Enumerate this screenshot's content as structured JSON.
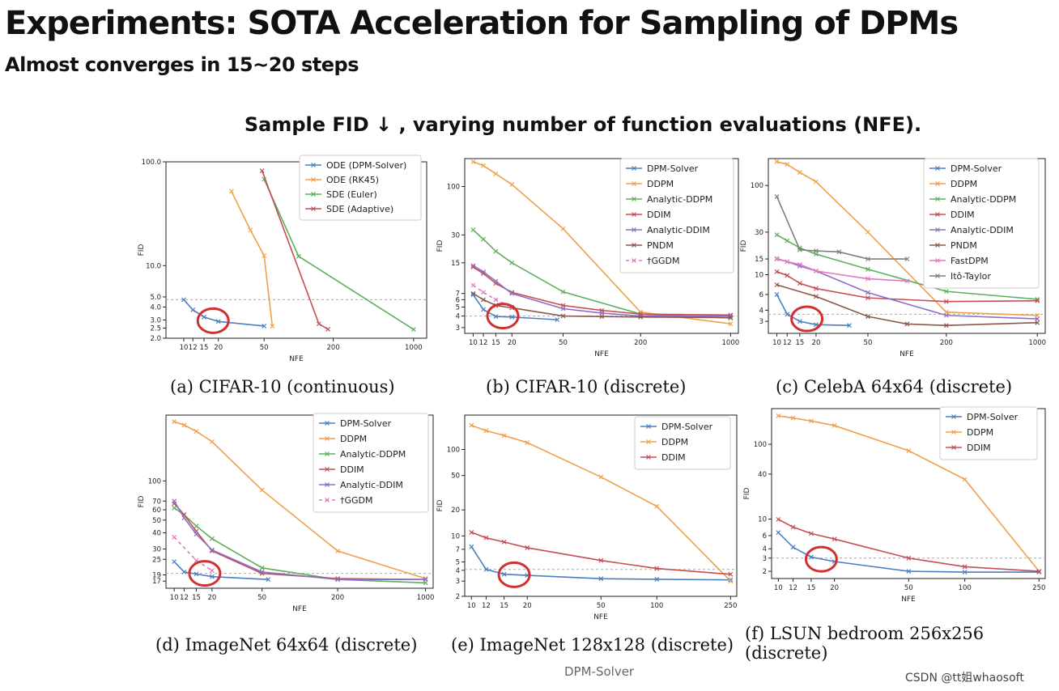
{
  "slide": {
    "title": "Experiments: SOTA Acceleration for Sampling of DPMs",
    "subtitle": "Almost converges in 15~20 steps",
    "section_title": "Sample FID ↓ , varying number of function evaluations (NFE).",
    "footer": "DPM-Solver",
    "watermark": "CSDN @tt姐whaosoft"
  },
  "colors": {
    "DPM-Solver": "#4a7fc2",
    "ODE (DPM-Solver)": "#4a7fc2",
    "DDPM": "#f0a04b",
    "ODE (RK45)": "#f0a04b",
    "Analytic-DDPM": "#5cb05c",
    "SDE (Euler)": "#5cb05c",
    "DDIM": "#c44e52",
    "SDE (Adaptive)": "#c44e52",
    "Analytic-DDIM": "#8c6fc6",
    "PNDM": "#8c564b",
    "†GGDM": "#e377c2",
    "FastDPM": "#e377c2",
    "Itô-Taylor": "#7f7f7f",
    "circle": "#d0302f"
  },
  "chart_data": [
    {
      "type": "line",
      "caption": "(a) CIFAR-10 (continuous)",
      "xlabel": "NFE",
      "ylabel": "FID",
      "xlim": [
        7,
        1300
      ],
      "ylim": [
        2.0,
        100
      ],
      "xticks": [
        10,
        12,
        15,
        20,
        50,
        200,
        1000
      ],
      "xtick_labels": [
        "10",
        "12",
        "15",
        "20",
        "50",
        "200",
        "1000"
      ],
      "yticks": [
        2.0,
        2.5,
        3.0,
        4.0,
        5.0,
        10.0,
        100.0
      ],
      "ytick_labels": [
        "2.0",
        "2.5",
        "3.0",
        "4.0",
        "5.0",
        "10.0",
        "100.0"
      ],
      "hline": 4.7,
      "circle": {
        "x": 18,
        "y": 2.95
      },
      "series": [
        {
          "name": "ODE (DPM-Solver)",
          "x": [
            10,
            12,
            15,
            20,
            50
          ],
          "y": [
            4.7,
            3.75,
            3.2,
            2.9,
            2.62
          ]
        },
        {
          "name": "ODE (RK45)",
          "x": [
            26,
            38,
            50,
            59
          ],
          "y": [
            52,
            22,
            12.5,
            2.61
          ]
        },
        {
          "name": "SDE (Euler)",
          "x": [
            50,
            100,
            1000
          ],
          "y": [
            68,
            12.3,
            2.43
          ]
        },
        {
          "name": "SDE (Adaptive)",
          "x": [
            48,
            150,
            180
          ],
          "y": [
            82,
            2.75,
            2.44
          ]
        }
      ]
    },
    {
      "type": "line",
      "caption": "(b) CIFAR-10 (discrete)",
      "xlabel": "NFE",
      "ylabel": "FID",
      "xlim": [
        8.6,
        1150
      ],
      "ylim": [
        2.6,
        200
      ],
      "xticks": [
        10,
        12,
        15,
        20,
        50,
        200,
        1000
      ],
      "xtick_labels": [
        "10",
        "12",
        "15",
        "20",
        "50",
        "200",
        "1000"
      ],
      "yticks": [
        3,
        4,
        5,
        6,
        7,
        15,
        30,
        100
      ],
      "ytick_labels": [
        "3",
        "4",
        "5",
        "6",
        "7",
        "15",
        "30",
        "100"
      ],
      "hline": 4.0,
      "circle": {
        "x": 17,
        "y": 4.0
      },
      "series": [
        {
          "name": "DPM-Solver",
          "x": [
            10,
            12,
            15,
            20,
            45
          ],
          "y": [
            6.8,
            4.7,
            3.95,
            3.9,
            3.65
          ]
        },
        {
          "name": "DDPM",
          "x": [
            10,
            12,
            15,
            20,
            50,
            200,
            1000
          ],
          "y": [
            185,
            168,
            137,
            105,
            35,
            4.4,
            3.3
          ]
        },
        {
          "name": "Analytic-DDPM",
          "x": [
            10,
            12,
            15,
            20,
            50,
            200,
            1000
          ],
          "y": [
            34,
            27,
            20,
            15,
            7.3,
            4.2,
            3.8
          ]
        },
        {
          "name": "DDIM",
          "x": [
            10,
            12,
            15,
            20,
            50,
            100,
            200,
            1000
          ],
          "y": [
            13.5,
            11.5,
            9,
            7.2,
            5.2,
            4.6,
            4.2,
            4.1
          ]
        },
        {
          "name": "Analytic-DDIM",
          "x": [
            10,
            12,
            15,
            20,
            50,
            100,
            200,
            1000
          ],
          "y": [
            14,
            12,
            9.5,
            7,
            4.8,
            4.3,
            4.0,
            4.0
          ]
        },
        {
          "name": "PNDM",
          "x": [
            10,
            12,
            15,
            20,
            50,
            100,
            200,
            1000
          ],
          "y": [
            7.0,
            6.0,
            5.2,
            4.9,
            4.0,
            3.95,
            3.9,
            3.85
          ]
        },
        {
          "name": "†GGDM",
          "x": [
            10,
            12,
            15,
            20
          ],
          "y": [
            8.6,
            7.2,
            6.0,
            5.0
          ],
          "dashed": true
        }
      ]
    },
    {
      "type": "line",
      "caption": "(c) CelebA 64x64 (discrete)",
      "xlabel": "NFE",
      "ylabel": "FID",
      "xlim": [
        8.6,
        1150
      ],
      "ylim": [
        2.2,
        200
      ],
      "xticks": [
        10,
        12,
        15,
        20,
        50,
        200,
        1000
      ],
      "xtick_labels": [
        "10",
        "12",
        "15",
        "20",
        "50",
        "200",
        "1000"
      ],
      "yticks": [
        3,
        4,
        6,
        10,
        15,
        30,
        100
      ],
      "ytick_labels": [
        "3",
        "4",
        "6",
        "10",
        "15",
        "30",
        "100"
      ],
      "hline": 3.6,
      "circle": {
        "x": 17,
        "y": 3.2
      },
      "series": [
        {
          "name": "DPM-Solver",
          "x": [
            10,
            12,
            15,
            20,
            36
          ],
          "y": [
            6.0,
            3.6,
            3.0,
            2.75,
            2.7
          ]
        },
        {
          "name": "DDPM",
          "x": [
            10,
            12,
            15,
            20,
            50,
            200,
            1000
          ],
          "y": [
            185,
            172,
            140,
            110,
            30,
            3.8,
            3.5
          ]
        },
        {
          "name": "Analytic-DDPM",
          "x": [
            10,
            12,
            15,
            20,
            50,
            200,
            1000
          ],
          "y": [
            28,
            24,
            20,
            17,
            11.5,
            6.5,
            5.3
          ]
        },
        {
          "name": "DDIM",
          "x": [
            10,
            12,
            15,
            20,
            50,
            200,
            1000
          ],
          "y": [
            10.8,
            9.8,
            8,
            7,
            5.5,
            5.0,
            5.1
          ]
        },
        {
          "name": "Analytic-DDIM",
          "x": [
            10,
            12,
            15,
            20,
            50,
            200,
            1000
          ],
          "y": [
            15,
            14,
            12.5,
            11,
            6.3,
            3.5,
            3.2
          ]
        },
        {
          "name": "PNDM",
          "x": [
            10,
            20,
            50,
            100,
            200,
            1000
          ],
          "y": [
            7.7,
            5.7,
            3.4,
            2.8,
            2.7,
            2.9
          ]
        },
        {
          "name": "FastDPM",
          "x": [
            10,
            12,
            15,
            20,
            50,
            100
          ],
          "y": [
            15.2,
            14,
            13,
            11,
            9,
            8.5
          ]
        },
        {
          "name": "Itô-Taylor",
          "x": [
            10,
            15,
            20,
            30,
            50,
            100
          ],
          "y": [
            75,
            19,
            18.5,
            18,
            15,
            15
          ]
        }
      ]
    },
    {
      "type": "line",
      "caption": "(d) ImageNet 64x64 (discrete)",
      "xlabel": "NFE",
      "ylabel": "FID",
      "xlim": [
        8.6,
        1150
      ],
      "ylim": [
        15,
        320
      ],
      "xticks": [
        10,
        12,
        15,
        20,
        50,
        200,
        1000
      ],
      "xtick_labels": [
        "10",
        "12",
        "15",
        "20",
        "50",
        "200",
        "1000"
      ],
      "yticks": [
        17,
        19,
        25,
        30,
        40,
        50,
        60,
        70,
        100
      ],
      "ytick_labels": [
        "17",
        "19",
        "25",
        "30",
        "40",
        "50",
        "60",
        "70",
        "100"
      ],
      "hline": 19.5,
      "circle": {
        "x": 17.5,
        "y": 19.5
      },
      "series": [
        {
          "name": "DPM-Solver",
          "x": [
            10,
            12,
            15,
            20,
            56
          ],
          "y": [
            24,
            20,
            19.3,
            18.4,
            17.5
          ]
        },
        {
          "name": "DDPM",
          "x": [
            10,
            12,
            15,
            20,
            50,
            200,
            1000
          ],
          "y": [
            285,
            268,
            240,
            200,
            85,
            29,
            17.8
          ]
        },
        {
          "name": "Analytic-DDPM",
          "x": [
            10,
            12,
            15,
            20,
            50,
            200,
            1000
          ],
          "y": [
            62,
            55,
            45,
            36,
            21.5,
            17.5,
            16.5
          ]
        },
        {
          "name": "DDIM",
          "x": [
            10,
            12,
            15,
            20,
            50,
            200,
            1000
          ],
          "y": [
            67,
            55,
            41,
            29,
            19.5,
            17.8,
            17.5
          ]
        },
        {
          "name": "Analytic-DDIM",
          "x": [
            10,
            12,
            15,
            20,
            50,
            200,
            1000
          ],
          "y": [
            70,
            52,
            39,
            29.5,
            20,
            17.5,
            17.5
          ]
        },
        {
          "name": "†GGDM",
          "x": [
            10,
            15,
            20
          ],
          "y": [
            37,
            24.5,
            20.5
          ],
          "dashed": true
        }
      ]
    },
    {
      "type": "line",
      "caption": "(e) ImageNet 128x128 (discrete)",
      "xlabel": "NFE",
      "ylabel": "FID",
      "xlim": [
        9.2,
        270
      ],
      "ylim": [
        2,
        250
      ],
      "xticks": [
        10,
        12,
        15,
        20,
        50,
        100,
        250
      ],
      "xtick_labels": [
        "10",
        "12",
        "15",
        "20",
        "50",
        "100",
        "250"
      ],
      "yticks": [
        2,
        3,
        4,
        5,
        7,
        10,
        20,
        50,
        100
      ],
      "ytick_labels": [
        "2",
        "3",
        "4",
        "5",
        "7",
        "10",
        "20",
        "50",
        "100"
      ],
      "hline": 4.1,
      "circle": {
        "x": 17,
        "y": 3.55
      },
      "series": [
        {
          "name": "DPM-Solver",
          "x": [
            10,
            12,
            15,
            20,
            50,
            100,
            250
          ],
          "y": [
            7.5,
            4.1,
            3.6,
            3.5,
            3.2,
            3.15,
            3.1
          ]
        },
        {
          "name": "DDPM",
          "x": [
            10,
            12,
            15,
            20,
            50,
            100,
            250
          ],
          "y": [
            190,
            165,
            145,
            120,
            48,
            22,
            3.0
          ]
        },
        {
          "name": "DDIM",
          "x": [
            10,
            12,
            15,
            20,
            50,
            100,
            250
          ],
          "y": [
            11,
            9.5,
            8.5,
            7.3,
            5.2,
            4.2,
            3.6
          ]
        }
      ]
    },
    {
      "type": "line",
      "caption": "(f) LSUN bedroom 256x256 (discrete)",
      "xlabel": "NFE",
      "ylabel": "FID",
      "xlim": [
        9.2,
        270
      ],
      "ylim": [
        1.6,
        300
      ],
      "xticks": [
        10,
        12,
        15,
        20,
        50,
        100,
        250
      ],
      "xtick_labels": [
        "10",
        "12",
        "15",
        "20",
        "50",
        "100",
        "250"
      ],
      "yticks": [
        2,
        3,
        4,
        6,
        10,
        40,
        100
      ],
      "ytick_labels": [
        "2",
        "3",
        "4",
        "6",
        "10",
        "40",
        "100"
      ],
      "hline": 3.0,
      "circle": {
        "x": 17,
        "y": 2.9
      },
      "series": [
        {
          "name": "DPM-Solver",
          "x": [
            10,
            12,
            15,
            20,
            50,
            100,
            250
          ],
          "y": [
            6.6,
            4.2,
            3.1,
            2.7,
            2.0,
            1.95,
            1.95
          ]
        },
        {
          "name": "DDPM",
          "x": [
            10,
            12,
            15,
            20,
            50,
            100,
            250
          ],
          "y": [
            240,
            225,
            205,
            178,
            82,
            34,
            2.0
          ]
        },
        {
          "name": "DDIM",
          "x": [
            10,
            12,
            15,
            20,
            50,
            100,
            250
          ],
          "y": [
            9.9,
            7.8,
            6.4,
            5.4,
            3.0,
            2.3,
            2.0
          ]
        }
      ]
    }
  ]
}
